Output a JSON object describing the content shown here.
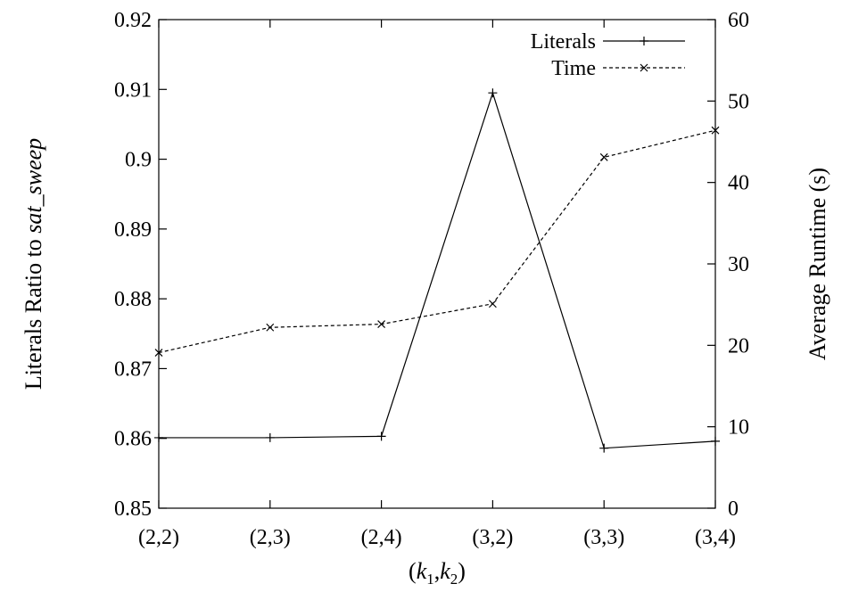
{
  "chart_data": {
    "type": "line",
    "categories": [
      "(2,2)",
      "(2,3)",
      "(2,4)",
      "(3,2)",
      "(3,3)",
      "(3,4)"
    ],
    "xlabel": {
      "open": "(",
      "var1": "k",
      "sub1": "1",
      "sep": ",",
      "var2": "k",
      "sub2": "2",
      "close": ")"
    },
    "ylabel_left": {
      "prefix": "Literals Ratio to ",
      "emph": "sat_sweep"
    },
    "ylabel_right": "Average Runtime (s)",
    "y_left": {
      "lim": [
        0.85,
        0.92
      ],
      "ticks": [
        "0.85",
        "0.86",
        "0.87",
        "0.88",
        "0.89",
        "0.9",
        "0.91",
        "0.92"
      ]
    },
    "y_right": {
      "lim": [
        0,
        60
      ],
      "ticks": [
        "0",
        "10",
        "20",
        "30",
        "40",
        "50",
        "60"
      ]
    },
    "series": [
      {
        "name": "Literals",
        "axis": "left",
        "style": "solid",
        "marker": "plus",
        "color": "#000000",
        "values": [
          0.8601,
          0.8601,
          0.8603,
          0.9095,
          0.8586,
          0.8596
        ]
      },
      {
        "name": "Time",
        "axis": "right",
        "style": "dashed",
        "marker": "cross",
        "color": "#000000",
        "values": [
          19.1,
          22.2,
          22.6,
          25.1,
          43.1,
          46.4
        ]
      }
    ],
    "legend_position": "top-right",
    "grid": false
  }
}
